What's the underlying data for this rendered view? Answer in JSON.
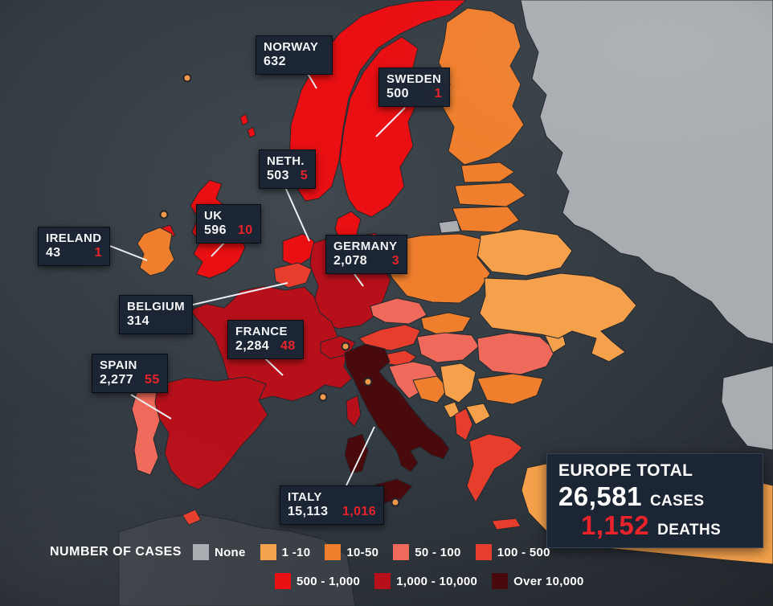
{
  "colors": {
    "none": "#a9adb1",
    "c1_10": "#f5a14b",
    "c10_50": "#ef7f2d",
    "c50_100": "#ef6a5a",
    "c100_500": "#e73d2c",
    "c500_1000": "#e90f13",
    "c1000_10000": "#b8101a",
    "over_10000": "#490a0e",
    "death_red": "#e8232b",
    "land_other": "#3a4046"
  },
  "callouts": [
    {
      "id": "norway",
      "name": "NORWAY",
      "cases": "632",
      "deaths": ""
    },
    {
      "id": "sweden",
      "name": "SWEDEN",
      "cases": "500",
      "deaths": "1"
    },
    {
      "id": "netherlands",
      "name": "NETH.",
      "cases": "503",
      "deaths": "5"
    },
    {
      "id": "uk",
      "name": "UK",
      "cases": "596",
      "deaths": "10"
    },
    {
      "id": "ireland",
      "name": "IRELAND",
      "cases": "43",
      "deaths": "1"
    },
    {
      "id": "germany",
      "name": "GERMANY",
      "cases": "2,078",
      "deaths": "3"
    },
    {
      "id": "belgium",
      "name": "BELGIUM",
      "cases": "314",
      "deaths": ""
    },
    {
      "id": "france",
      "name": "FRANCE",
      "cases": "2,284",
      "deaths": "48"
    },
    {
      "id": "spain",
      "name": "SPAIN",
      "cases": "2,277",
      "deaths": "55"
    },
    {
      "id": "italy",
      "name": "ITALY",
      "cases": "15,113",
      "deaths": "1,016"
    }
  ],
  "total": {
    "title": "EUROPE TOTAL",
    "cases": "26,581",
    "cases_label": "CASES",
    "deaths": "1,152",
    "deaths_label": "DEATHS"
  },
  "legend": {
    "title": "NUMBER OF CASES",
    "row1": [
      {
        "label": "None",
        "color": "#a9adb1"
      },
      {
        "label": "1 -10",
        "color": "#f5a14b"
      },
      {
        "label": "10-50",
        "color": "#ef7f2d"
      },
      {
        "label": "50 - 100",
        "color": "#ef6a5a"
      },
      {
        "label": "100 - 500",
        "color": "#e73d2c"
      }
    ],
    "row2": [
      {
        "label": "500 - 1,000",
        "color": "#e90f13"
      },
      {
        "label": "1,000 - 10,000",
        "color": "#b8101a"
      },
      {
        "label": "Over 10,000",
        "color": "#490a0e"
      }
    ]
  },
  "map": {
    "regions": {
      "russia": "none",
      "caucasus": "none",
      "kaliningrad": "none",
      "finland": "c10_50",
      "norway": "c500_1000",
      "sweden": "c500_1000",
      "denmark": "c500_1000",
      "estonia": "c10_50",
      "latvia": "c10_50",
      "lithuania": "c10_50",
      "belarus": "c1_10",
      "poland": "c10_50",
      "germany": "c1000_10000",
      "netherlands": "c500_1000",
      "belgium": "c100_500",
      "france": "c1000_10000",
      "switzerland": "c1000_10000",
      "austria": "c100_500",
      "czech": "c50_100",
      "slovakia": "c10_50",
      "hungary": "c50_100",
      "slovenia": "c100_500",
      "croatia": "c50_100",
      "bosnia": "c10_50",
      "serbia": "c1_10",
      "montenegro": "c1_10",
      "albania": "c100_500",
      "macedonia": "c1_10",
      "bulgaria": "c10_50",
      "romania": "c50_100",
      "moldova": "c1_10",
      "ukraine": "c1_10",
      "greece": "c100_500",
      "turkey": "c1_10",
      "italy": "over_10000",
      "sicily": "over_10000",
      "sardinia": "over_10000",
      "corsica": "c1000_10000",
      "spain": "c1000_10000",
      "portugal": "c50_100",
      "uk": "c500_1000",
      "n_ireland": "c500_1000",
      "shetland": "c500_1000",
      "ireland": "c10_50",
      "africa": "land_other",
      "morocco": "c100_500"
    }
  }
}
